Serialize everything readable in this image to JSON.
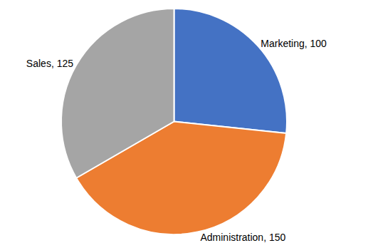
{
  "chart_data": {
    "type": "pie",
    "categories": [
      "Marketing",
      "Administration",
      "Sales"
    ],
    "values": [
      100,
      150,
      125
    ],
    "value_labels": [
      "Marketing, 100",
      "Administration, 150",
      "Sales, 125"
    ],
    "colors": [
      "#4472c4",
      "#ed7d31",
      "#a5a5a5"
    ],
    "data_labels": true
  }
}
